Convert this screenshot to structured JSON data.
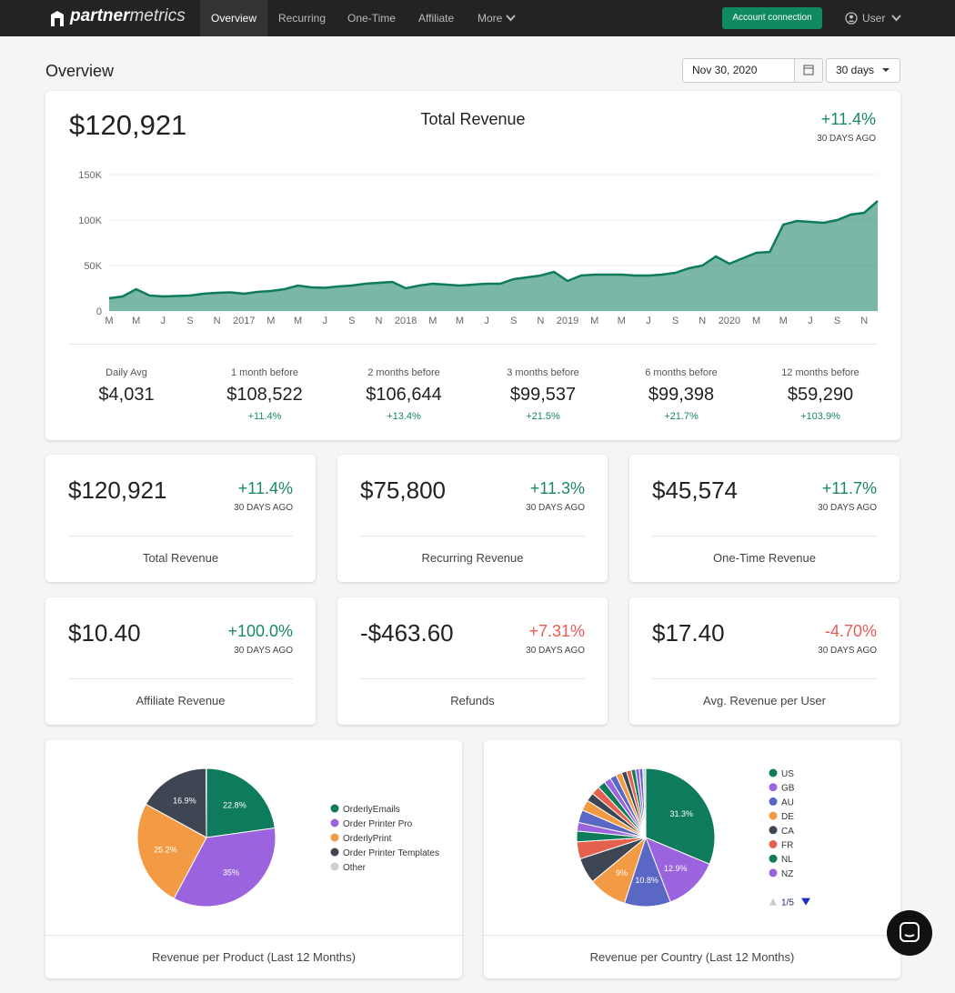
{
  "nav": {
    "brand_bold": "partner",
    "brand_light": "metrics",
    "items": [
      "Overview",
      "Recurring",
      "One-Time",
      "Affiliate",
      "More"
    ],
    "button": "Account connection",
    "user": "User"
  },
  "header": {
    "title": "Overview",
    "date": "Nov 30, 2020",
    "range": "30 days"
  },
  "summary": {
    "value": "$120,921",
    "change": "+11.4%",
    "note": "30 DAYS AGO",
    "stats": [
      {
        "label": "Daily Avg",
        "value": "$4,031"
      },
      {
        "label": "1 month before",
        "value": "$108,522",
        "change": "+11.4%"
      },
      {
        "label": "2 months before",
        "value": "$106,644",
        "change": "+13.4%"
      },
      {
        "label": "3 months before",
        "value": "$99,537",
        "change": "+21.5%"
      },
      {
        "label": "6 months before",
        "value": "$99,398",
        "change": "+21.7%"
      },
      {
        "label": "12 months before",
        "value": "$59,290",
        "change": "+103.9%"
      }
    ]
  },
  "cards": [
    {
      "value": "$120,921",
      "change": "+11.4%",
      "note": "30 DAYS AGO",
      "label": "Total Revenue",
      "color": "#1a8a5f"
    },
    {
      "value": "$75,800",
      "change": "+11.3%",
      "note": "30 DAYS AGO",
      "label": "Recurring Revenue",
      "color": "#1a8a5f"
    },
    {
      "value": "$45,574",
      "change": "+11.7%",
      "note": "30 DAYS AGO",
      "label": "One-Time Revenue",
      "color": "#1a8a5f"
    },
    {
      "value": "$10.40",
      "change": "+100.0%",
      "note": "30 DAYS AGO",
      "label": "Affiliate Revenue",
      "color": "#1a8a5f"
    },
    {
      "value": "-$463.60",
      "change": "+7.31%",
      "note": "30 DAYS AGO",
      "label": "Refunds",
      "color": "#e85b55"
    },
    {
      "value": "$17.40",
      "change": "-4.70%",
      "note": "30 DAYS AGO",
      "label": "Avg. Revenue per User",
      "color": "#e85b55"
    }
  ],
  "chart_data": [
    {
      "type": "area",
      "title": "Total Revenue",
      "color": "#0e7c5c",
      "categories": [
        "M",
        null,
        "M",
        null,
        "J",
        null,
        "S",
        null,
        "N",
        null,
        "2017",
        null,
        "M",
        null,
        "M",
        null,
        "J",
        null,
        "S",
        null,
        "N",
        null,
        "2018",
        null,
        "M",
        null,
        "M",
        null,
        "J",
        null,
        "S",
        null,
        "N",
        null,
        "2019",
        null,
        "M",
        null,
        "M",
        null,
        "J",
        null,
        "S",
        null,
        "N",
        null,
        "2020",
        null,
        "M",
        null,
        "M",
        null,
        "J",
        null,
        "S",
        null,
        "N",
        null
      ],
      "values": [
        14,
        16,
        24,
        17,
        16,
        16.5,
        17,
        19,
        20,
        20.5,
        19,
        21,
        22,
        24,
        28,
        26,
        25.5,
        27,
        28,
        30,
        31,
        32,
        25,
        28,
        30,
        29,
        28,
        29,
        30,
        30,
        35,
        37,
        39,
        43,
        33,
        39,
        40,
        40,
        40,
        39,
        39,
        40,
        42,
        47,
        50,
        60,
        52,
        58,
        64,
        65,
        95,
        99,
        98,
        97,
        100,
        106,
        108,
        120.9
      ],
      "ylim": [
        0,
        150
      ],
      "yticks": [
        0,
        {
          "value": 50,
          "label": "50K"
        },
        {
          "value": 100,
          "label": "100K"
        },
        {
          "value": 150,
          "label": "150K"
        }
      ]
    },
    {
      "type": "pie",
      "title": "Revenue per Product (Last 12 Months)",
      "categories": [
        "OrderlyEmails",
        "Order Printer Pro",
        "OrderlyPrint",
        "Order Printer Templates",
        "Other"
      ],
      "values": [
        22.8,
        35,
        25.2,
        16.9,
        0.1
      ],
      "value_labels": [
        "22.8%",
        "35%",
        "25.2%",
        "16.9%",
        null
      ],
      "colors": [
        "#0e7c5c",
        "#9c63de",
        "#f39a45",
        "#3e4654",
        "#cfcfcf"
      ]
    },
    {
      "type": "pie",
      "title": "Revenue per Country (Last 12 Months)",
      "pager": "1/5",
      "categories": [
        "US",
        "GB",
        "AU",
        "DE",
        "CA",
        "FR",
        "NL",
        "NZ",
        null,
        null,
        null,
        null,
        null,
        null,
        null,
        null,
        null,
        null,
        null,
        null,
        null,
        null
      ],
      "values": [
        31.3,
        12.9,
        10.8,
        9,
        6,
        4,
        2.5,
        2,
        3,
        2.5,
        2,
        2,
        1.8,
        1.6,
        1.5,
        1.4,
        1.2,
        1.1,
        1,
        0.9,
        0.8,
        0.7
      ],
      "value_labels": [
        "31.3%",
        "12.9%",
        "10.8%",
        "9%",
        null,
        null,
        null,
        null,
        null,
        null,
        null,
        null,
        null,
        null,
        null,
        null,
        null,
        null,
        null,
        null,
        null,
        null
      ],
      "colors": [
        "#0e7c5c",
        "#9c63de",
        "#5a67c4",
        "#f39a45",
        "#3e4654",
        "#e5604d",
        "#0e7c5c",
        "#9c63de",
        "#5a67c4",
        "#f39a45",
        "#3e4654",
        "#e5604d",
        "#0e7c5c",
        "#9c63de",
        "#5a67c4",
        "#f39a45",
        "#3e4654",
        "#e5604d",
        "#0e7c5c",
        "#9c63de",
        "#5a67c4",
        "#cfcfcf"
      ]
    }
  ]
}
